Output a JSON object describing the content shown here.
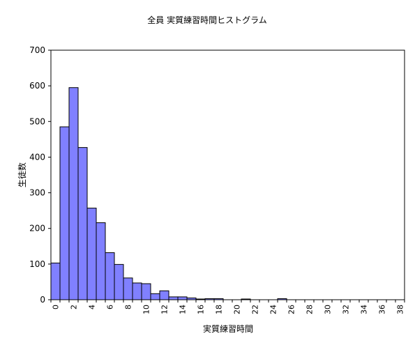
{
  "chart_data": {
    "type": "bar",
    "title": "全員 実質練習時間ヒストグラム",
    "xlabel": "実質練習時間",
    "ylabel": "生徒数",
    "ylim": [
      0,
      700
    ],
    "yticks": [
      0,
      100,
      200,
      300,
      400,
      500,
      600,
      700
    ],
    "xticks": [
      0,
      2,
      4,
      6,
      8,
      10,
      12,
      14,
      16,
      18,
      20,
      22,
      24,
      26,
      28,
      30,
      32,
      34,
      36,
      38
    ],
    "grid": false,
    "legend": "none",
    "bar_color": "#8080ff",
    "x": [
      0,
      1,
      2,
      3,
      4,
      5,
      6,
      7,
      8,
      9,
      10,
      11,
      12,
      13,
      14,
      15,
      16,
      17,
      18,
      19,
      20,
      21,
      22,
      23,
      24,
      25,
      26,
      27,
      28,
      29,
      30,
      31,
      32,
      33,
      34,
      35,
      36,
      37,
      38
    ],
    "values": [
      103,
      485,
      595,
      427,
      257,
      216,
      132,
      99,
      61,
      47,
      45,
      17,
      25,
      8,
      8,
      5,
      2,
      3,
      3,
      0,
      0,
      2,
      0,
      0,
      0,
      3,
      0,
      0,
      0,
      0,
      0,
      0,
      0,
      0,
      0,
      0,
      0,
      0,
      0
    ]
  }
}
